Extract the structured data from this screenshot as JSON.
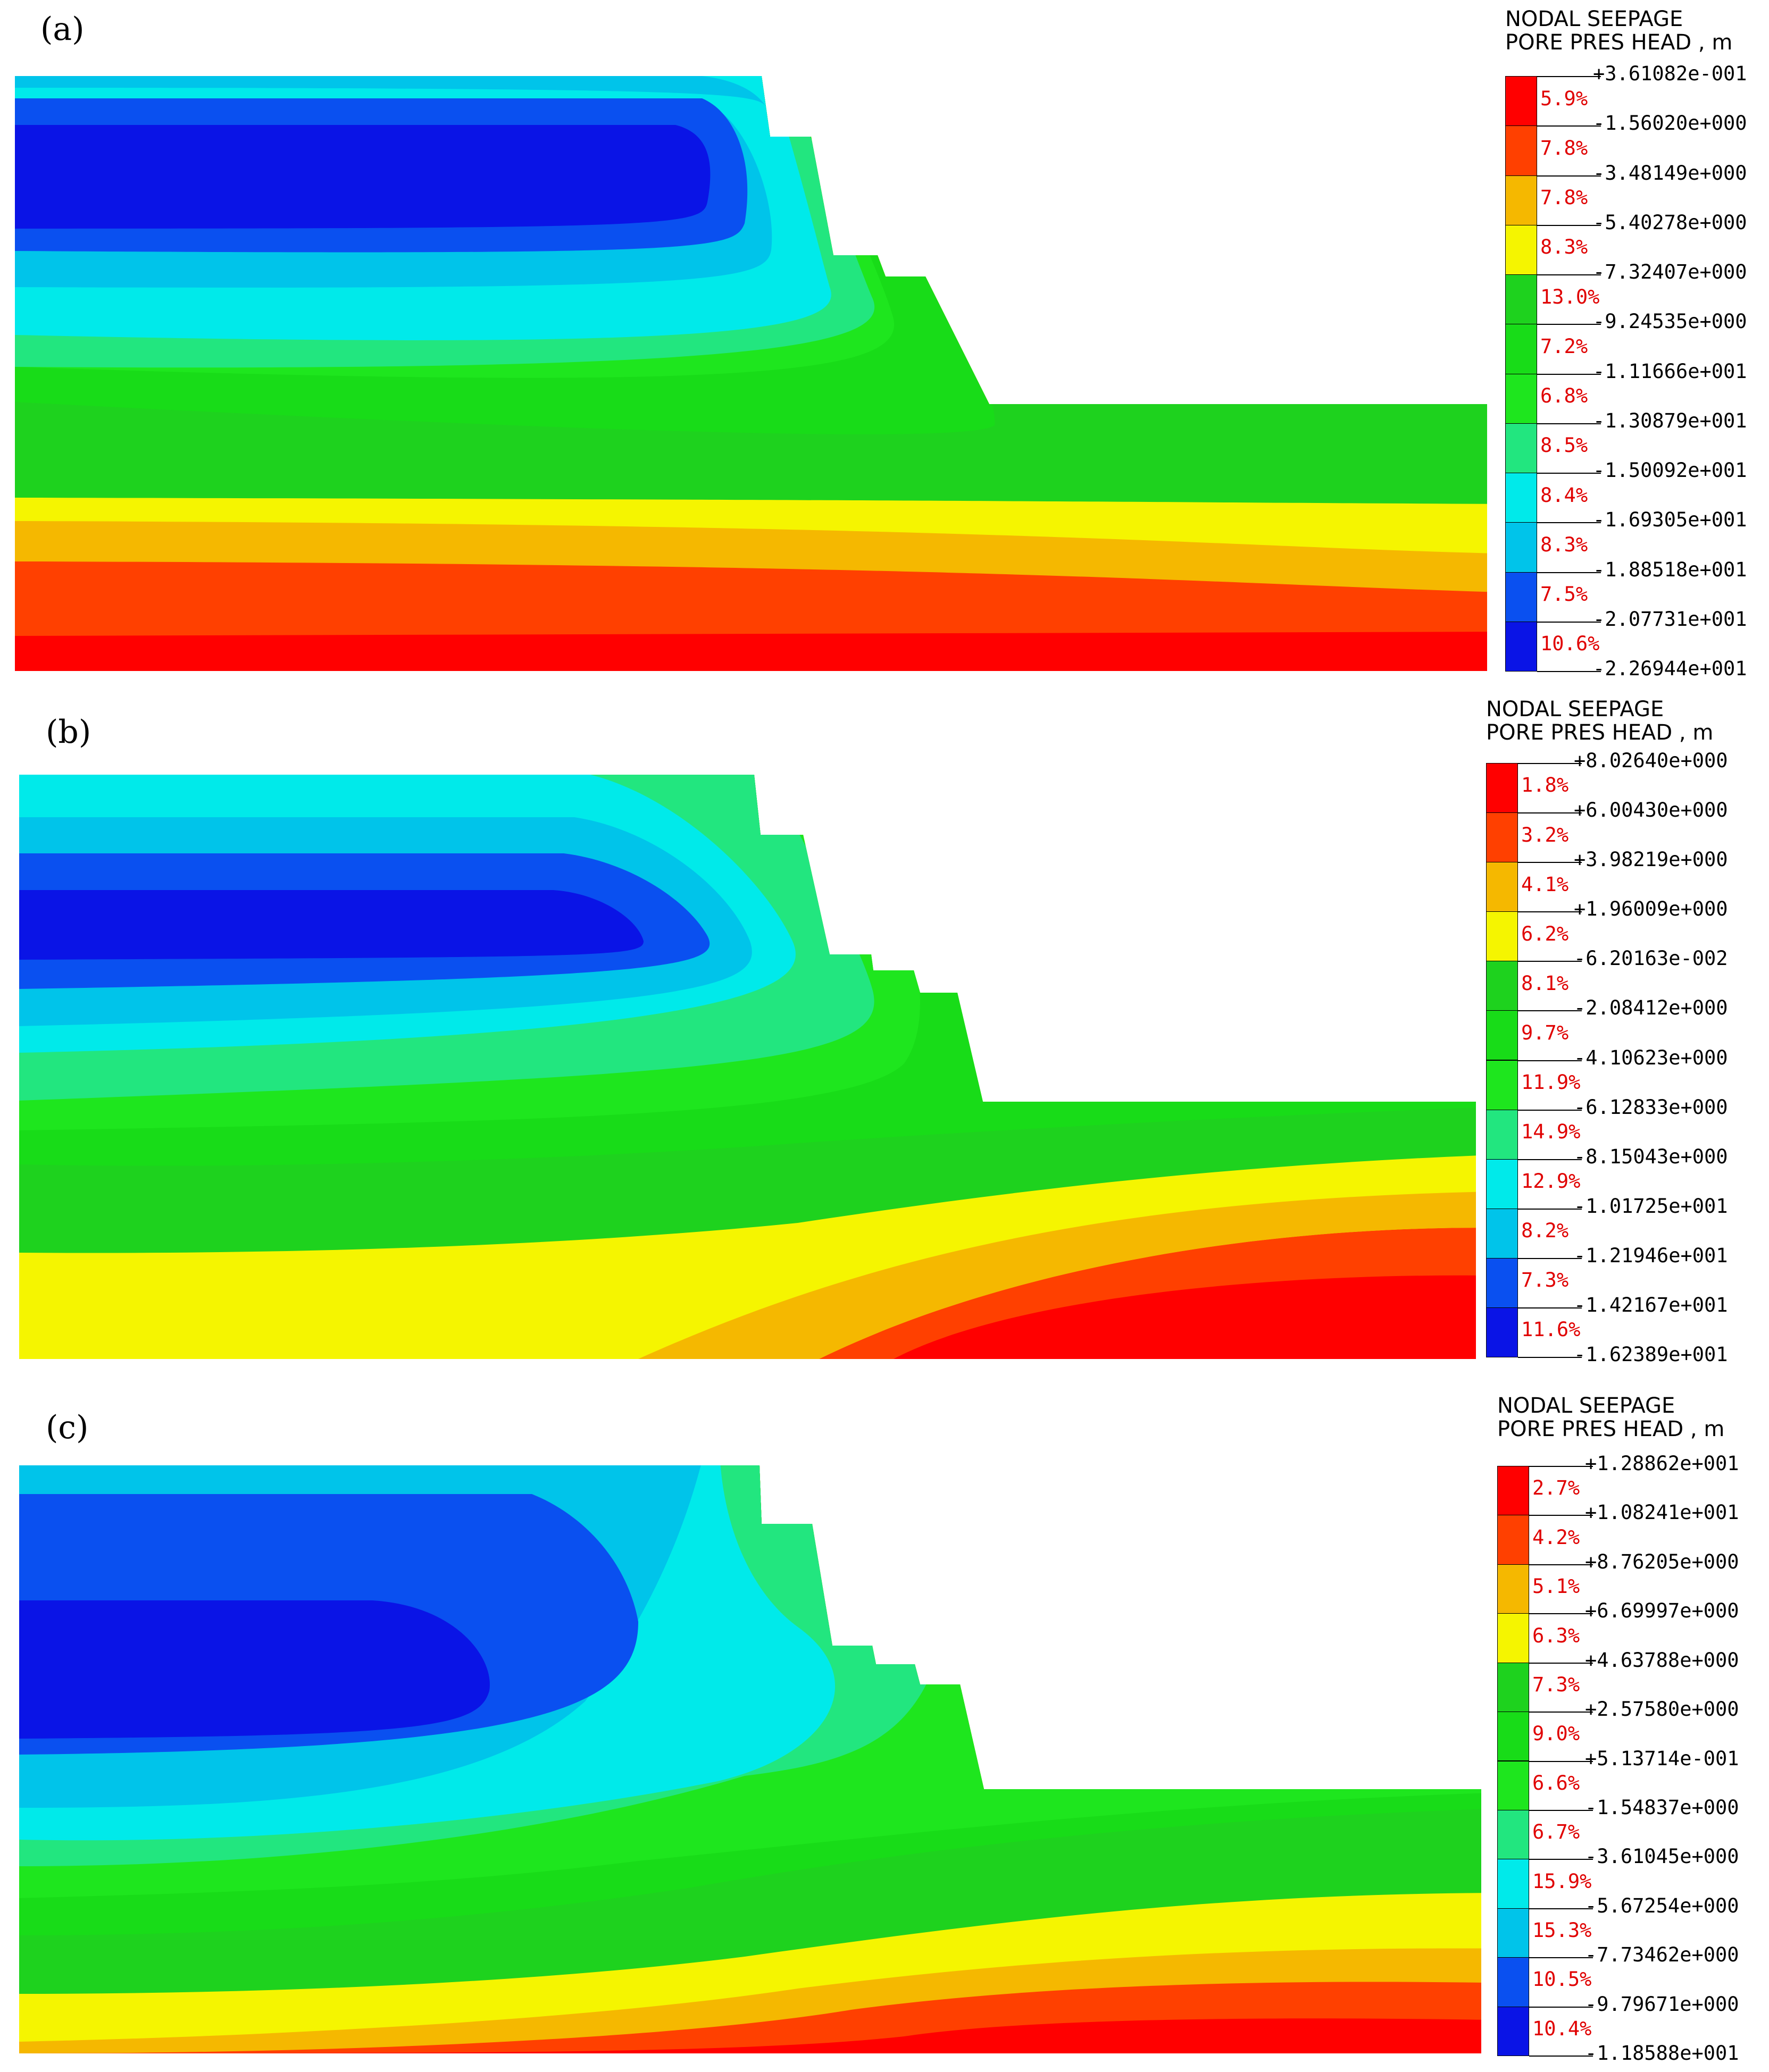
{
  "palette": [
    "#ff0000",
    "#ff4000",
    "#f5b800",
    "#f5f500",
    "#1ed21e",
    "#18dc18",
    "#1ee61e",
    "#22e67f",
    "#00eaea",
    "#00c4ea",
    "#0a50f0",
    "#0a14e6"
  ],
  "panels": [
    {
      "label": "(a)",
      "legend_title": [
        "NODAL SEEPAGE",
        "PORE PRES HEAD , m"
      ],
      "values": [
        "+3.61082e-001",
        "-1.56020e+000",
        "-3.48149e+000",
        "-5.40278e+000",
        "-7.32407e+000",
        "-9.24535e+000",
        "-1.11666e+001",
        "-1.30879e+001",
        "-1.50092e+001",
        "-1.69305e+001",
        "-1.88518e+001",
        "-2.07731e+001",
        "-2.26944e+001"
      ],
      "percents": [
        "5.9%",
        "7.8%",
        "7.8%",
        "8.3%",
        "13.0%",
        "7.2%",
        "6.8%",
        "8.5%",
        "8.4%",
        "8.3%",
        "7.5%",
        "10.6%"
      ]
    },
    {
      "label": "(b)",
      "legend_title": [
        "NODAL SEEPAGE",
        "PORE PRES HEAD , m"
      ],
      "values": [
        "+8.02640e+000",
        "+6.00430e+000",
        "+3.98219e+000",
        "+1.96009e+000",
        "-6.20163e-002",
        "-2.08412e+000",
        "-4.10623e+000",
        "-6.12833e+000",
        "-8.15043e+000",
        "-1.01725e+001",
        "-1.21946e+001",
        "-1.42167e+001",
        "-1.62389e+001"
      ],
      "percents": [
        "1.8%",
        "3.2%",
        "4.1%",
        "6.2%",
        "8.1%",
        "9.7%",
        "11.9%",
        "14.9%",
        "12.9%",
        "8.2%",
        "7.3%",
        "11.6%"
      ]
    },
    {
      "label": "(c)",
      "legend_title": [
        "NODAL SEEPAGE",
        "PORE PRES HEAD , m"
      ],
      "values": [
        "+1.28862e+001",
        "+1.08241e+001",
        "+8.76205e+000",
        "+6.69997e+000",
        "+4.63788e+000",
        "+2.57580e+000",
        "+5.13714e-001",
        "-1.54837e+000",
        "-3.61045e+000",
        "-5.67254e+000",
        "-7.73462e+000",
        "-9.79671e+000",
        "-1.18588e+001"
      ],
      "percents": [
        "2.7%",
        "4.2%",
        "5.1%",
        "6.3%",
        "7.3%",
        "9.0%",
        "6.6%",
        "6.7%",
        "15.9%",
        "15.3%",
        "10.5%",
        "10.4%"
      ]
    }
  ]
}
